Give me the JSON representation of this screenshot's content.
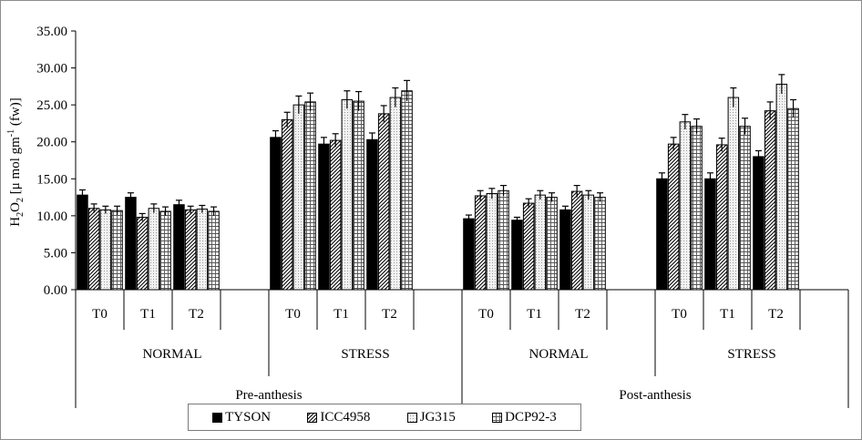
{
  "chart_data": {
    "type": "bar",
    "ylabel_parts": {
      "h": "H",
      "sub2a": "2",
      "o": "O",
      "sub2b": "2",
      "open": " [",
      "mu": "μ",
      "unit": " mol gm",
      "sup": "-1",
      "tail": " (fw)]"
    },
    "ylim": [
      0,
      35
    ],
    "yticks": [
      "0.00",
      "5.00",
      "10.00",
      "15.00",
      "20.00",
      "25.00",
      "30.00",
      "35.00"
    ],
    "group_categories": [
      "T0",
      "T1",
      "T2",
      "T0",
      "T1",
      "T2",
      "T0",
      "T1",
      "T2",
      "T0",
      "T1",
      "T2"
    ],
    "conditions": [
      "NORMAL",
      "STRESS",
      "NORMAL",
      "STRESS"
    ],
    "stages": [
      "Pre-anthesis",
      "Post-anthesis"
    ],
    "series": [
      {
        "name": "TYSON",
        "pattern": "solid",
        "values": [
          12.8,
          12.5,
          11.5,
          20.6,
          19.7,
          20.3,
          9.6,
          9.4,
          10.8,
          15.0,
          15.0,
          18.0
        ],
        "errors": [
          0.7,
          0.6,
          0.6,
          0.9,
          0.9,
          0.9,
          0.5,
          0.4,
          0.5,
          0.8,
          0.8,
          0.8
        ]
      },
      {
        "name": "ICC4958",
        "pattern": "diagonal",
        "values": [
          11.0,
          9.8,
          10.8,
          23.0,
          20.2,
          23.8,
          12.7,
          11.7,
          13.3,
          19.7,
          19.6,
          24.2
        ],
        "errors": [
          0.6,
          0.5,
          0.5,
          1.0,
          0.9,
          1.1,
          0.7,
          0.6,
          0.8,
          0.9,
          0.9,
          1.2
        ]
      },
      {
        "name": "JG315",
        "pattern": "dotted",
        "values": [
          10.8,
          11.0,
          10.9,
          25.0,
          25.7,
          26.0,
          13.0,
          12.8,
          12.8,
          22.7,
          26.0,
          27.8
        ],
        "errors": [
          0.5,
          0.6,
          0.5,
          1.2,
          1.2,
          1.3,
          0.7,
          0.6,
          0.6,
          1.0,
          1.3,
          1.3
        ]
      },
      {
        "name": "DCP92-3",
        "pattern": "grid",
        "values": [
          10.7,
          10.6,
          10.6,
          25.4,
          25.5,
          26.9,
          13.4,
          12.5,
          12.5,
          22.1,
          22.1,
          24.5
        ],
        "errors": [
          0.6,
          0.6,
          0.6,
          1.2,
          1.3,
          1.4,
          0.7,
          0.6,
          0.6,
          1.0,
          1.1,
          1.2
        ]
      }
    ]
  }
}
